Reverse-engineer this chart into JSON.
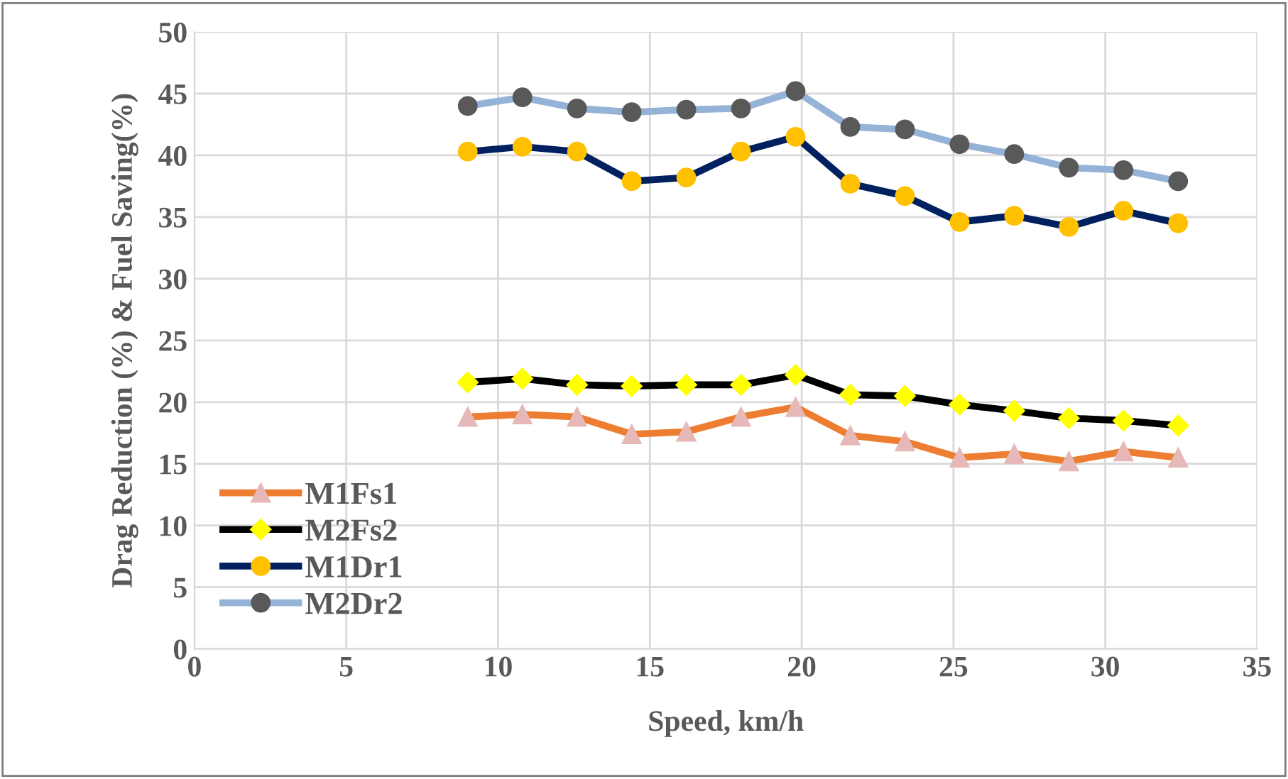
{
  "chart_data": {
    "type": "line",
    "xlabel": "Speed, km/h",
    "ylabel": "Drag Reduction (%) & Fuel Saving(%)",
    "x": [
      9,
      10.8,
      12.6,
      14.4,
      16.2,
      18,
      19.8,
      21.6,
      23.4,
      25.2,
      27,
      28.8,
      30.6,
      32.4
    ],
    "xlim": [
      0,
      35
    ],
    "xticks": [
      0,
      5,
      10,
      15,
      20,
      25,
      30,
      35
    ],
    "ylim": [
      0,
      50
    ],
    "yticks": [
      0,
      5,
      10,
      15,
      20,
      25,
      30,
      35,
      40,
      45,
      50
    ],
    "grid": true,
    "legend": "bottom left",
    "line_style": "solid",
    "series": [
      {
        "name": "M1Fs1",
        "color": "#ed7d31",
        "marker": "triangle",
        "values": [
          18.8,
          19.0,
          18.8,
          17.4,
          17.6,
          18.8,
          19.6,
          17.3,
          16.8,
          15.5,
          15.8,
          15.2,
          16.0,
          15.5
        ]
      },
      {
        "name": "M2Fs2",
        "color": "#000000",
        "marker": "diamond",
        "values": [
          21.6,
          21.9,
          21.4,
          21.3,
          21.4,
          21.4,
          22.2,
          20.6,
          20.5,
          19.8,
          19.3,
          18.7,
          18.5,
          18.1
        ]
      },
      {
        "name": "M1Dr1",
        "color": "#002060",
        "marker": "circle",
        "values": [
          40.3,
          40.7,
          40.3,
          37.9,
          38.2,
          40.3,
          41.5,
          37.7,
          36.7,
          34.6,
          35.1,
          34.2,
          35.5,
          34.5
        ]
      },
      {
        "name": "M2Dr2",
        "color": "#95b3d7",
        "marker": "circle",
        "values": [
          44.0,
          44.7,
          43.8,
          43.5,
          43.7,
          43.8,
          45.2,
          42.3,
          42.1,
          40.9,
          40.1,
          39.0,
          38.8,
          37.9
        ]
      }
    ]
  }
}
